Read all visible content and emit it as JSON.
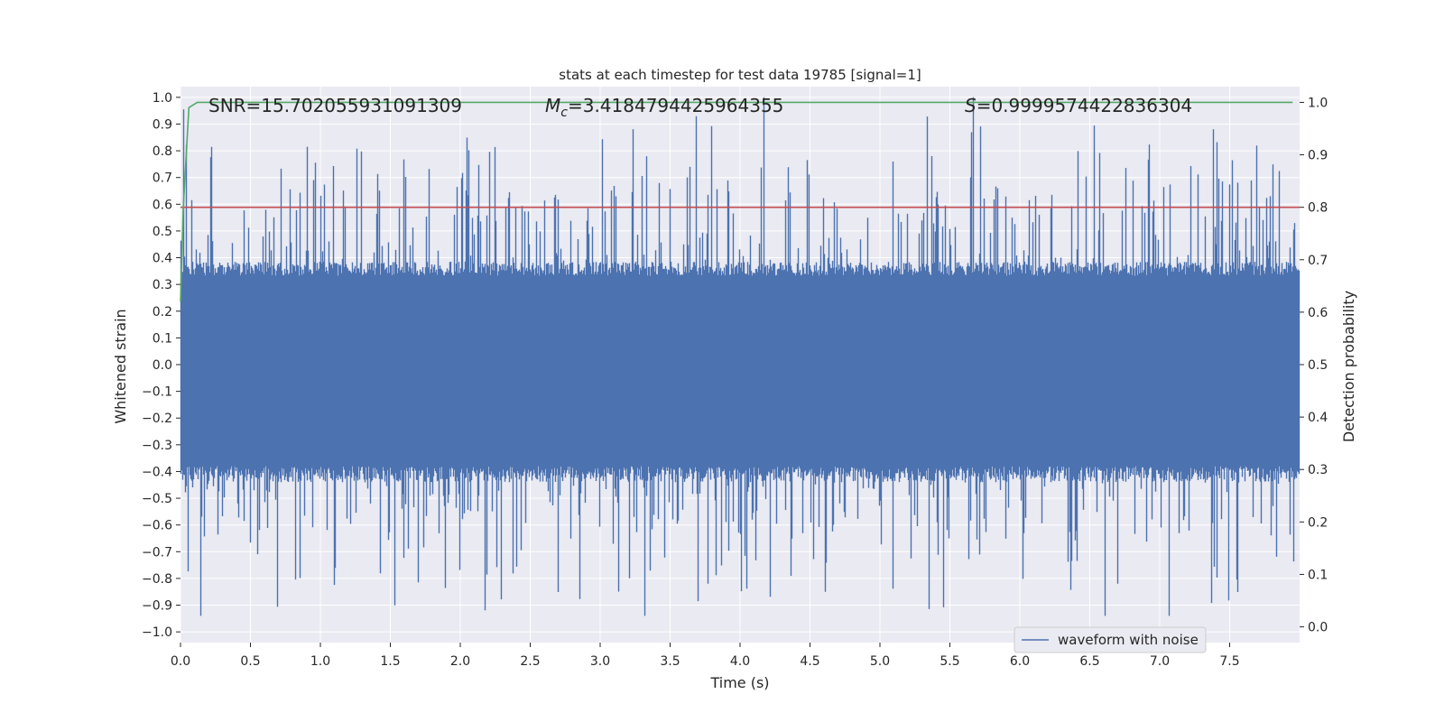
{
  "chart_data": {
    "type": "line",
    "title": "stats at each timestep for test data 19785 [signal=1]",
    "xlabel": "Time (s)",
    "ylabel": "Whitened strain",
    "y2label": "Detection probability",
    "xlim": [
      0.0,
      8.0
    ],
    "ylim": [
      -1.04,
      1.04
    ],
    "y2lim": [
      -0.03,
      1.03
    ],
    "xticks": [
      0.0,
      0.5,
      1.0,
      1.5,
      2.0,
      2.5,
      3.0,
      3.5,
      4.0,
      4.5,
      5.0,
      5.5,
      6.0,
      6.5,
      7.0,
      7.5
    ],
    "xtick_labels": [
      "0.0",
      "0.5",
      "1.0",
      "1.5",
      "2.0",
      "2.5",
      "3.0",
      "3.5",
      "4.0",
      "4.5",
      "5.0",
      "5.5",
      "6.0",
      "6.5",
      "7.0",
      "7.5"
    ],
    "yticks": [
      -1.0,
      -0.9,
      -0.8,
      -0.7,
      -0.6,
      -0.5,
      -0.4,
      -0.3,
      -0.2,
      -0.1,
      0.0,
      0.1,
      0.2,
      0.3,
      0.4,
      0.5,
      0.6,
      0.7,
      0.8,
      0.9,
      1.0
    ],
    "ytick_labels": [
      "−1.0",
      "−0.9",
      "−0.8",
      "−0.7",
      "−0.6",
      "−0.5",
      "−0.4",
      "−0.3",
      "−0.2",
      "−0.1",
      "0.0",
      "0.1",
      "0.2",
      "0.3",
      "0.4",
      "0.5",
      "0.6",
      "0.7",
      "0.8",
      "0.9",
      "1.0"
    ],
    "y2ticks": [
      0.0,
      0.1,
      0.2,
      0.3,
      0.4,
      0.5,
      0.6,
      0.7,
      0.8,
      0.9,
      1.0
    ],
    "y2tick_labels": [
      "0.0",
      "0.1",
      "0.2",
      "0.3",
      "0.4",
      "0.5",
      "0.6",
      "0.7",
      "0.8",
      "0.9",
      "1.0"
    ],
    "annotations": {
      "snr": "SNR=15.702055931091309",
      "mc_symbol": "M",
      "mc_subscript": "c",
      "mc_value": "=3.4184794425964355",
      "s_symbol": "S",
      "s_value": "=0.9999574422836304"
    },
    "legend": {
      "location": "lower-right",
      "entries": [
        "waveform with noise"
      ]
    },
    "waveform": {
      "name": "waveform with noise",
      "color": "#4c72b0",
      "samples": 8192,
      "duration": 8.0,
      "typical_max": 0.35,
      "typical_min": -0.4,
      "peak_max": 1.0,
      "peak_min": -0.94
    },
    "threshold": {
      "value": 0.8,
      "color": "#c44e52"
    },
    "detection_probability": {
      "color": "#55a868",
      "x": [
        0.0,
        0.02,
        0.06,
        0.12,
        0.2,
        7.95
      ],
      "y": [
        0.62,
        0.8,
        0.99,
        1.0,
        1.0,
        1.0
      ]
    },
    "colors": {
      "plot_bg": "#eaeaf2",
      "grid": "#ffffff"
    }
  }
}
